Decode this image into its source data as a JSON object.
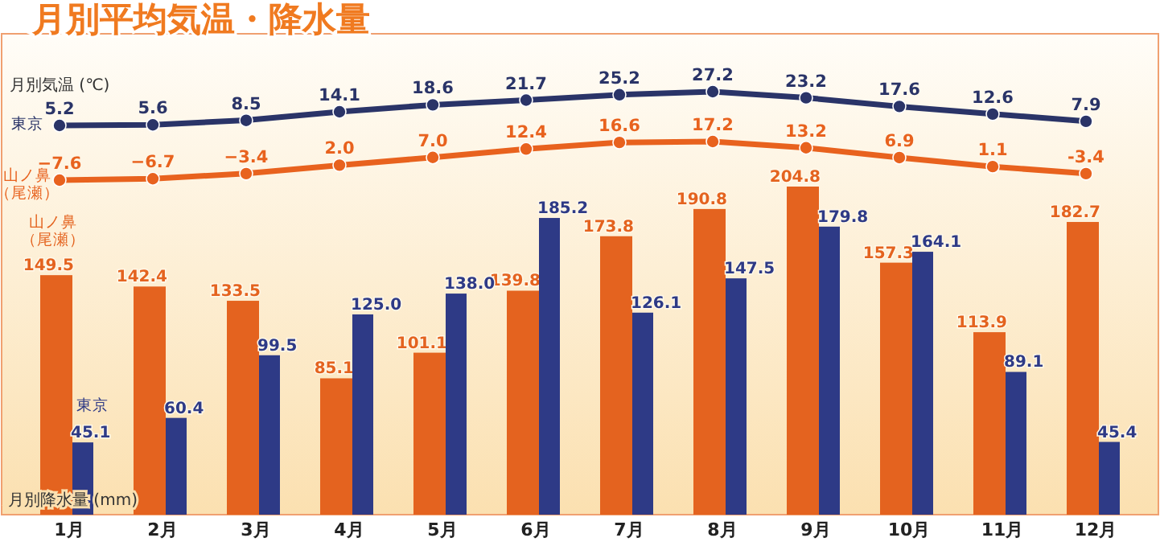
{
  "chart_data": [
    {
      "type": "line",
      "title": "月別平均気温・降水量",
      "ylabel": "月別気温 (℃)",
      "categories": [
        null,
        null,
        null,
        null,
        null,
        null,
        null,
        null,
        null,
        null,
        null,
        null
      ],
      "marker": "circle",
      "series": [
        {
          "name": "東京",
          "color": "#2a3468",
          "values": [
            5.2,
            5.6,
            8.5,
            14.1,
            18.6,
            21.7,
            25.2,
            27.2,
            23.2,
            17.6,
            12.6,
            7.9
          ],
          "value_labels": [
            "5.2",
            "5.6",
            "8.5",
            "14.1",
            "18.6",
            "21.7",
            "25.2",
            "27.2",
            "23.2",
            "17.6",
            "12.6",
            "7.9"
          ]
        }
      ]
    },
    {
      "type": "line",
      "categories": [
        null,
        null,
        null,
        null,
        null,
        null,
        null,
        null,
        null,
        null,
        null,
        null
      ],
      "marker": "circle",
      "series": [
        {
          "name": "山ノ鼻（尾瀬）",
          "color": "#e8621e",
          "values": [
            -7.6,
            -6.7,
            -3.4,
            2.0,
            7.0,
            12.4,
            16.6,
            17.2,
            13.2,
            6.9,
            1.1,
            -3.4
          ],
          "value_labels": [
            "−7.6",
            "−6.7",
            "−3.4",
            "2.0",
            "7.0",
            "12.4",
            "16.6",
            "17.2",
            "13.2",
            "6.9",
            "1.1",
            "-3.4"
          ]
        }
      ]
    },
    {
      "type": "bar",
      "ylabel": "月別降水量 (mm)",
      "categories": [
        "1月",
        "2月",
        "3月",
        "4月",
        "5月",
        "6月",
        "7月",
        "8月",
        "9月",
        "10月",
        "11月",
        "12月"
      ],
      "series": [
        {
          "name": "山ノ鼻（尾瀬）",
          "color": "#e4631f",
          "values": [
            149.5,
            142.4,
            133.5,
            85.1,
            101.1,
            139.8,
            173.8,
            190.8,
            204.8,
            157.3,
            113.9,
            182.7
          ],
          "value_labels": [
            "149.5",
            "142.4",
            "133.5",
            "85.1",
            "101.1",
            "139.8",
            "173.8",
            "190.8",
            "204.8",
            "157.3",
            "113.9",
            "182.7"
          ]
        },
        {
          "name": "東京",
          "color": "#2e3a86",
          "values": [
            45.1,
            60.4,
            99.5,
            125.0,
            138.0,
            185.2,
            126.1,
            147.5,
            179.8,
            164.1,
            89.1,
            45.4
          ],
          "value_labels": [
            "45.1",
            "60.4",
            "99.5",
            "125.0",
            "138.0",
            "185.2",
            "126.1",
            "147.5",
            "179.8",
            "164.1",
            "89.1",
            "45.4"
          ]
        }
      ]
    }
  ]
}
